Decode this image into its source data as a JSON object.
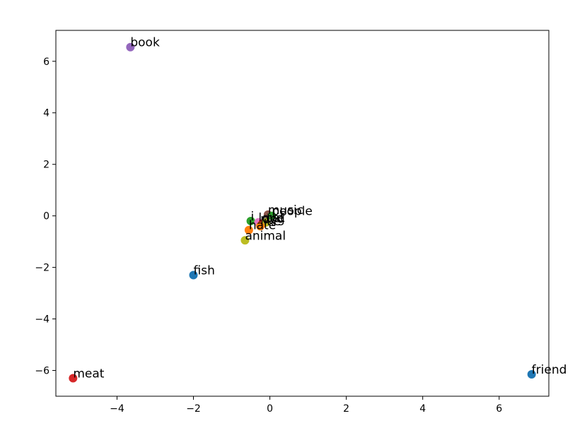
{
  "chart_data": {
    "type": "scatter",
    "title": "",
    "xlabel": "",
    "ylabel": "",
    "xlim": [
      -5.6,
      7.3
    ],
    "ylim": [
      -7.0,
      7.2
    ],
    "grid": false,
    "xticks": [
      -4,
      -2,
      0,
      2,
      4,
      6
    ],
    "yticks": [
      -6,
      -4,
      -2,
      0,
      2,
      4,
      6
    ],
    "xtick_labels": [
      "−4",
      "−2",
      "0",
      "2",
      "4",
      "6"
    ],
    "ytick_labels": [
      "−6",
      "−4",
      "−2",
      "0",
      "2",
      "4",
      "6"
    ],
    "points": [
      {
        "label": "book",
        "x": -3.65,
        "y": 6.55,
        "color": "#9467bd"
      },
      {
        "label": "music",
        "x": -0.05,
        "y": 0.05,
        "color": "#8c564b"
      },
      {
        "label": "people",
        "x": 0.05,
        "y": 0.0,
        "color": "#2ca02c"
      },
      {
        "label": "i",
        "x": -0.5,
        "y": -0.2,
        "color": "#2ca02c"
      },
      {
        "label": "love",
        "x": -0.3,
        "y": -0.25,
        "color": "#e377c2"
      },
      {
        "label": "dog",
        "x": -0.2,
        "y": -0.3,
        "color": "#d62728"
      },
      {
        "label": "cat",
        "x": -0.1,
        "y": -0.25,
        "color": "#bcbd22"
      },
      {
        "label": "hate",
        "x": -0.55,
        "y": -0.55,
        "color": "#ff7f0e"
      },
      {
        "label": "like",
        "x": -0.25,
        "y": -0.4,
        "color": "#ff7f0e"
      },
      {
        "label": "animal",
        "x": -0.65,
        "y": -0.95,
        "color": "#bcbd22"
      },
      {
        "label": "fish",
        "x": -2.0,
        "y": -2.3,
        "color": "#1f77b4"
      },
      {
        "label": "friend",
        "x": 6.85,
        "y": -6.15,
        "color": "#1f77b4"
      },
      {
        "label": "meat",
        "x": -5.15,
        "y": -6.3,
        "color": "#d62728"
      }
    ]
  }
}
